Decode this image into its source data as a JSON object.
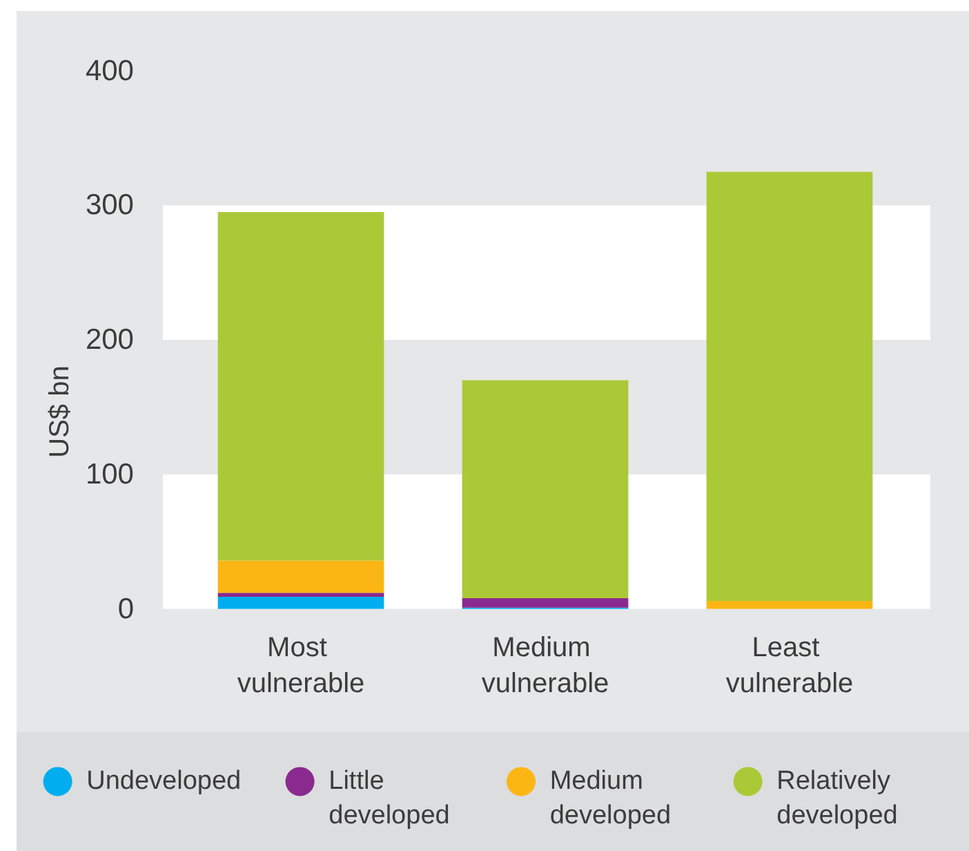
{
  "chart_data": {
    "type": "bar",
    "stacked": true,
    "categories": [
      "Most vulnerable",
      "Medium vulnerable",
      "Least vulnerable"
    ],
    "series": [
      {
        "name": "Undeveloped",
        "color": "#00aeef",
        "values": [
          9,
          1,
          0
        ]
      },
      {
        "name": "Little developed",
        "color": "#8b2a8e",
        "values": [
          3,
          7,
          0
        ]
      },
      {
        "name": "Medium developed",
        "color": "#fcb614",
        "values": [
          24,
          0,
          6
        ]
      },
      {
        "name": "Relatively developed",
        "color": "#abc937",
        "values": [
          259,
          162,
          319
        ]
      }
    ],
    "ylabel": "US$ bn",
    "ylim": [
      0,
      400
    ],
    "yticks": [
      0,
      100,
      200,
      300,
      400
    ],
    "bands": [
      {
        "axis": "y",
        "from": 0,
        "to": 100,
        "color": "#ffffff"
      },
      {
        "axis": "y",
        "from": 200,
        "to": 300,
        "color": "#ffffff"
      }
    ],
    "legend": "bottom"
  }
}
